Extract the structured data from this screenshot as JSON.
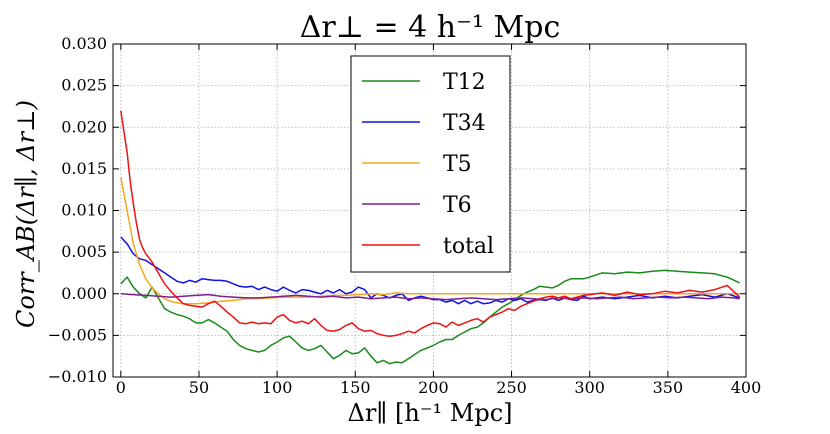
{
  "chart_data": {
    "type": "line",
    "title": "Δr⊥ = 4 h⁻¹ Mpc",
    "xlabel": "Δr∥ [h⁻¹ Mpc]",
    "ylabel": "Corr_AB(Δr∥, Δr⊥)",
    "xlim": [
      -5,
      400
    ],
    "ylim": [
      -0.01,
      0.03
    ],
    "xticks": [
      0,
      50,
      100,
      150,
      200,
      250,
      300,
      350,
      400
    ],
    "yticks": [
      -0.01,
      -0.005,
      0.0,
      0.005,
      0.01,
      0.015,
      0.02,
      0.025,
      0.03
    ],
    "xtick_labels": [
      "0",
      "50",
      "100",
      "150",
      "200",
      "250",
      "300",
      "350",
      "400"
    ],
    "ytick_labels": [
      "−0.010",
      "−0.005",
      "0.000",
      "0.005",
      "0.010",
      "0.015",
      "0.020",
      "0.025",
      "0.030"
    ],
    "grid": true,
    "legend_position": "top-center",
    "series": [
      {
        "name": "T12",
        "color": "#1a8a1a",
        "x": [
          0,
          4,
          8,
          12,
          16,
          20,
          24,
          28,
          32,
          36,
          40,
          44,
          48,
          52,
          56,
          60,
          64,
          68,
          72,
          76,
          80,
          84,
          88,
          92,
          96,
          100,
          104,
          108,
          112,
          116,
          120,
          124,
          128,
          132,
          136,
          140,
          144,
          148,
          152,
          156,
          160,
          164,
          168,
          172,
          176,
          180,
          184,
          188,
          192,
          196,
          200,
          204,
          208,
          212,
          216,
          220,
          224,
          228,
          232,
          236,
          240,
          244,
          248,
          252,
          256,
          260,
          264,
          268,
          272,
          276,
          280,
          284,
          288,
          292,
          296,
          300,
          308,
          316,
          324,
          332,
          340,
          348,
          356,
          364,
          372,
          380,
          388,
          396
        ],
        "y": [
          0.0012,
          0.002,
          0.0008,
          0.0,
          -0.0005,
          0.0008,
          -0.0005,
          -0.0018,
          -0.0022,
          -0.0025,
          -0.0027,
          -0.003,
          -0.0035,
          -0.0035,
          -0.0031,
          -0.0035,
          -0.004,
          -0.0045,
          -0.0055,
          -0.0062,
          -0.0066,
          -0.0068,
          -0.007,
          -0.0068,
          -0.0062,
          -0.0058,
          -0.0053,
          -0.0051,
          -0.0058,
          -0.0065,
          -0.0068,
          -0.0066,
          -0.0062,
          -0.007,
          -0.0078,
          -0.0074,
          -0.0068,
          -0.0072,
          -0.0071,
          -0.0065,
          -0.0075,
          -0.0083,
          -0.008,
          -0.0084,
          -0.0082,
          -0.0083,
          -0.0078,
          -0.0073,
          -0.0068,
          -0.0065,
          -0.0062,
          -0.0058,
          -0.0055,
          -0.0055,
          -0.005,
          -0.0046,
          -0.0042,
          -0.004,
          -0.0035,
          -0.0028,
          -0.0022,
          -0.0016,
          -0.0012,
          -0.0007,
          -0.0002,
          0.0002,
          0.0005,
          0.0009,
          0.0008,
          0.0007,
          0.001,
          0.0015,
          0.0018,
          0.0018,
          0.0018,
          0.002,
          0.0025,
          0.0024,
          0.0026,
          0.0025,
          0.0027,
          0.0028,
          0.0027,
          0.0026,
          0.0025,
          0.0024,
          0.002,
          0.0013
        ]
      },
      {
        "name": "T34",
        "color": "#1010ee",
        "x": [
          0,
          4,
          8,
          12,
          16,
          20,
          24,
          28,
          32,
          36,
          40,
          44,
          48,
          52,
          56,
          60,
          64,
          68,
          72,
          76,
          80,
          84,
          88,
          92,
          96,
          100,
          104,
          108,
          112,
          116,
          120,
          124,
          128,
          132,
          136,
          140,
          144,
          148,
          152,
          156,
          160,
          164,
          168,
          172,
          176,
          180,
          184,
          188,
          192,
          196,
          200,
          204,
          208,
          212,
          216,
          220,
          224,
          228,
          232,
          236,
          240,
          244,
          248,
          252,
          256,
          260,
          264,
          268,
          272,
          276,
          280,
          284,
          288,
          292,
          296,
          300,
          308,
          316,
          324,
          332,
          340,
          348,
          356,
          364,
          372,
          380,
          388,
          396
        ],
        "y": [
          0.0068,
          0.006,
          0.0048,
          0.0042,
          0.004,
          0.0035,
          0.003,
          0.0025,
          0.002,
          0.0015,
          0.0013,
          0.0016,
          0.0014,
          0.0018,
          0.0017,
          0.0016,
          0.0016,
          0.0015,
          0.0012,
          0.0009,
          0.0008,
          0.0009,
          0.0005,
          0.0008,
          0.0005,
          0.0003,
          0.0008,
          0.0004,
          0.0001,
          0.0005,
          0.0004,
          0.0002,
          0.0,
          0.0004,
          0.0001,
          0.0005,
          0.0,
          0.0002,
          0.0008,
          0.0005,
          -0.0005,
          0.0,
          -0.0002,
          -0.0005,
          -0.0002,
          0.0,
          -0.0008,
          -0.0005,
          -0.0003,
          -0.0005,
          -0.0007,
          -0.0007,
          -0.001,
          -0.0008,
          -0.0012,
          -0.0008,
          -0.0012,
          -0.0009,
          -0.0012,
          -0.0011,
          -0.0008,
          -0.001,
          -0.0006,
          -0.0008,
          -0.0006,
          -0.001,
          -0.0008,
          -0.0007,
          -0.0008,
          -0.0005,
          -0.0008,
          -0.0005,
          -0.0007,
          -0.0008,
          -0.0003,
          -0.0006,
          -0.0004,
          -0.0006,
          -0.0004,
          -0.0002,
          -0.0005,
          -0.0003,
          -0.0005,
          -0.0003,
          -0.0001,
          -0.0004,
          0.0,
          -0.0005
        ]
      },
      {
        "name": "T5",
        "color": "#f5a81c",
        "x": [
          0,
          4,
          8,
          12,
          16,
          20,
          24,
          28,
          32,
          36,
          40,
          48,
          56,
          64,
          72,
          80,
          88,
          96,
          104,
          112,
          120,
          128,
          136,
          144,
          152,
          160,
          168,
          176,
          184,
          192,
          200,
          208,
          216,
          224,
          232,
          240,
          248,
          256,
          264,
          272,
          280,
          296,
          312,
          328,
          344,
          360,
          376,
          396
        ],
        "y": [
          0.014,
          0.01,
          0.006,
          0.0035,
          0.0018,
          0.0007,
          0.0,
          -0.0006,
          -0.0009,
          -0.0011,
          -0.0012,
          -0.0012,
          -0.0011,
          -0.0009,
          -0.0008,
          -0.0006,
          -0.0006,
          -0.0005,
          -0.0004,
          -0.0004,
          -0.0004,
          -0.0003,
          -0.0002,
          -0.0002,
          -0.0001,
          0.0,
          -0.0001,
          0.0001,
          0.0,
          0.0,
          0.0,
          0.0,
          0.0,
          0.0,
          0.0,
          0.0,
          0.0,
          0.0,
          0.0,
          0.0,
          0.0,
          0.0,
          0.0,
          0.0,
          0.0,
          0.0,
          0.0,
          0.0
        ]
      },
      {
        "name": "T6",
        "color": "#7f1f8f",
        "x": [
          0,
          8,
          16,
          24,
          32,
          40,
          48,
          56,
          64,
          72,
          80,
          88,
          96,
          104,
          112,
          120,
          128,
          136,
          144,
          152,
          160,
          168,
          176,
          184,
          192,
          200,
          208,
          216,
          224,
          232,
          240,
          248,
          256,
          264,
          272,
          280,
          288,
          296,
          304,
          312,
          320,
          328,
          336,
          344,
          352,
          360,
          368,
          376,
          384,
          392,
          396
        ],
        "y": [
          0.0,
          -0.0001,
          -0.0002,
          -0.0003,
          -0.0004,
          -0.0003,
          -0.0002,
          -0.0001,
          -0.0003,
          -0.0004,
          -0.0005,
          -0.0005,
          -0.0004,
          -0.0003,
          -0.0002,
          -0.0003,
          -0.0004,
          -0.0003,
          -0.0005,
          -0.0004,
          -0.0006,
          -0.0005,
          -0.0004,
          -0.0006,
          -0.0005,
          -0.0006,
          -0.0007,
          -0.0006,
          -0.0005,
          -0.0006,
          -0.0007,
          -0.0006,
          -0.0005,
          -0.0006,
          -0.0007,
          -0.0005,
          -0.0006,
          -0.0005,
          -0.0006,
          -0.0005,
          -0.0004,
          -0.0006,
          -0.0005,
          -0.0004,
          -0.0005,
          -0.0004,
          -0.0005,
          -0.0006,
          -0.0004,
          -0.0005,
          -0.0006
        ]
      },
      {
        "name": "total",
        "color": "#ee1111",
        "x": [
          0,
          2,
          4,
          6,
          8,
          10,
          12,
          14,
          16,
          20,
          24,
          28,
          32,
          36,
          40,
          44,
          48,
          52,
          56,
          60,
          64,
          68,
          72,
          76,
          80,
          84,
          88,
          92,
          96,
          100,
          104,
          108,
          112,
          116,
          120,
          124,
          128,
          132,
          136,
          140,
          144,
          148,
          152,
          156,
          160,
          164,
          168,
          172,
          176,
          180,
          184,
          188,
          192,
          196,
          200,
          204,
          208,
          212,
          216,
          220,
          224,
          228,
          232,
          236,
          240,
          244,
          248,
          252,
          256,
          260,
          264,
          268,
          272,
          276,
          280,
          284,
          288,
          292,
          296,
          300,
          308,
          316,
          324,
          332,
          340,
          348,
          356,
          364,
          372,
          380,
          388,
          396
        ],
        "y": [
          0.022,
          0.0195,
          0.017,
          0.0135,
          0.0108,
          0.0085,
          0.0065,
          0.0055,
          0.0048,
          0.0038,
          0.0025,
          0.0012,
          0.0003,
          -0.0005,
          -0.0012,
          -0.0014,
          -0.0015,
          -0.0016,
          -0.0012,
          -0.0009,
          -0.0015,
          -0.0022,
          -0.0028,
          -0.0035,
          -0.0036,
          -0.0034,
          -0.0036,
          -0.0035,
          -0.0036,
          -0.0028,
          -0.0025,
          -0.0032,
          -0.0035,
          -0.0033,
          -0.0036,
          -0.003,
          -0.0038,
          -0.0044,
          -0.0045,
          -0.0043,
          -0.0038,
          -0.0035,
          -0.0042,
          -0.0045,
          -0.0044,
          -0.0048,
          -0.005,
          -0.0051,
          -0.005,
          -0.0048,
          -0.0045,
          -0.0047,
          -0.0042,
          -0.0038,
          -0.0035,
          -0.0036,
          -0.004,
          -0.0034,
          -0.0038,
          -0.0035,
          -0.0032,
          -0.003,
          -0.0034,
          -0.0028,
          -0.0025,
          -0.0022,
          -0.0018,
          -0.002,
          -0.0015,
          -0.0012,
          -0.0009,
          -0.0006,
          -0.0004,
          -0.0003,
          -0.0005,
          -0.0003,
          -0.0006,
          -0.0004,
          -0.0002,
          -0.0001,
          0.0001,
          -0.0002,
          0.0002,
          -0.0001,
          0.0,
          0.0003,
          0.0001,
          0.0004,
          0.0002,
          0.0005,
          0.001,
          -0.0004
        ]
      }
    ]
  }
}
